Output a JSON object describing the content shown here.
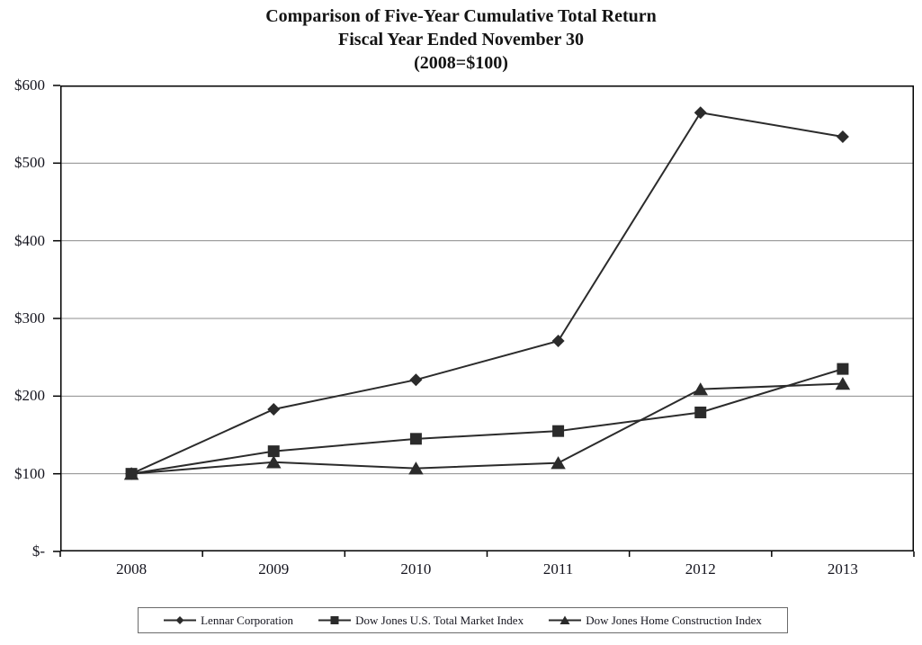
{
  "title": {
    "line1": "Comparison of Five-Year Cumulative Total Return",
    "line2": "Fiscal Year Ended November 30",
    "line3": "(2008=$100)"
  },
  "chart_data": {
    "type": "line",
    "categories": [
      "2008",
      "2009",
      "2010",
      "2011",
      "2012",
      "2013"
    ],
    "series": [
      {
        "name": "Lennar Corporation",
        "marker": "diamond",
        "values": [
          100,
          183,
          221,
          271,
          565,
          534
        ]
      },
      {
        "name": "Dow Jones U.S. Total Market Index",
        "marker": "square",
        "values": [
          100,
          129,
          145,
          155,
          179,
          235
        ]
      },
      {
        "name": "Dow Jones Home Construction Index",
        "marker": "triangle",
        "values": [
          100,
          115,
          107,
          114,
          209,
          216
        ]
      }
    ],
    "ylabel": "",
    "xlabel": "",
    "ylim": [
      0,
      600
    ],
    "y_tick_interval": 100,
    "y_tick_labels": [
      "$-",
      "$100",
      "$200",
      "$300",
      "$400",
      "$500",
      "$600"
    ],
    "grid": "horizontal-only",
    "legend_position": "bottom-boxed",
    "colors": {
      "series_line": "#2b2b2b",
      "marker_fill": "#2b2b2b",
      "gridline": "#8c8c8c",
      "axis_border": "#000000",
      "text": "#14141e",
      "legend_border": "#6b6b6b"
    }
  }
}
